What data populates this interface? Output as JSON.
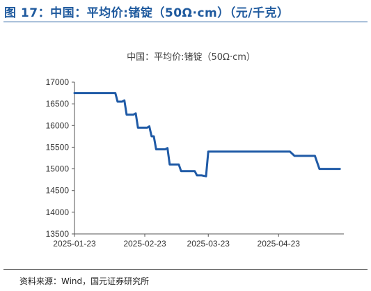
{
  "figure": {
    "title": "图 17：中国：平均价:锗锭（50Ω·cm）（元/千克）",
    "source": "资料来源：Wind，国元证券研究所"
  },
  "colors": {
    "accent": "#1f5a9e",
    "line": "#1f5aa6"
  },
  "chart_data": {
    "type": "line",
    "title": "中国：平均价:锗锭（50Ω·cm）",
    "xlabel": "",
    "ylabel": "",
    "ylim": [
      13500,
      17000
    ],
    "yticks": [
      13500,
      14000,
      14500,
      15000,
      15500,
      16000,
      16500,
      17000
    ],
    "xlim": [
      "2025-01-23",
      "2025-05-23"
    ],
    "xticks": [
      "2025-01-23",
      "2025-02-23",
      "2025-03-23",
      "2025-04-23"
    ],
    "grid": false,
    "legend": "none",
    "series": [
      {
        "points": [
          [
            "2025-01-23",
            16750
          ],
          [
            "2025-01-24",
            16750
          ],
          [
            "2025-02-01",
            16750
          ],
          [
            "2025-02-10",
            16750
          ],
          [
            "2025-02-11",
            16550
          ],
          [
            "2025-02-13",
            16550
          ],
          [
            "2025-02-14",
            16580
          ],
          [
            "2025-02-15",
            16250
          ],
          [
            "2025-02-18",
            16250
          ],
          [
            "2025-02-19",
            16280
          ],
          [
            "2025-02-20",
            15950
          ],
          [
            "2025-02-24",
            15950
          ],
          [
            "2025-02-25",
            15980
          ],
          [
            "2025-02-26",
            15750
          ],
          [
            "2025-02-27",
            15750
          ],
          [
            "2025-02-28",
            15450
          ],
          [
            "2025-03-04",
            15450
          ],
          [
            "2025-03-05",
            15480
          ],
          [
            "2025-03-06",
            15100
          ],
          [
            "2025-03-10",
            15100
          ],
          [
            "2025-03-11",
            14950
          ],
          [
            "2025-03-17",
            14950
          ],
          [
            "2025-03-18",
            14850
          ],
          [
            "2025-03-20",
            14850
          ],
          [
            "2025-03-22",
            14830
          ],
          [
            "2025-03-23",
            15400
          ],
          [
            "2025-04-01",
            15400
          ],
          [
            "2025-04-15",
            15400
          ],
          [
            "2025-04-28",
            15400
          ],
          [
            "2025-04-30",
            15300
          ],
          [
            "2025-05-09",
            15300
          ],
          [
            "2025-05-11",
            15000
          ],
          [
            "2025-05-14",
            15000
          ],
          [
            "2025-05-20",
            15000
          ]
        ]
      }
    ]
  }
}
